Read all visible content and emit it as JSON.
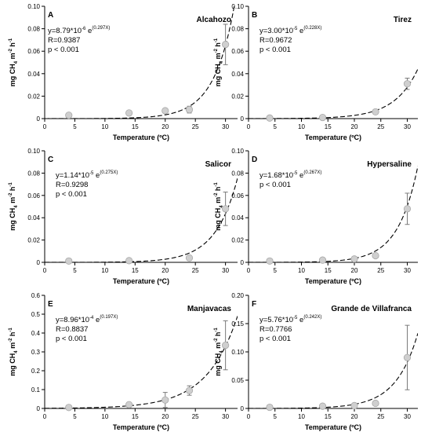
{
  "colors": {
    "axis": "#000000",
    "curve": "#000000",
    "marker_fill": "#cfcfcf",
    "marker_stroke": "#a8a8a8",
    "errorbar": "#7a7a7a"
  },
  "chart_data": [
    {
      "type": "scatter",
      "letter": "A",
      "site": "Alcahozo",
      "eq_base": "y=8.79*10",
      "eq_exp": "-6",
      "eq_e": " e",
      "eq_rate": "(0.297X)",
      "r": "R=0.9387",
      "p": "p < 0.001",
      "xlabel": "Temperature (ºC)",
      "ylabel_pre": "mg CH",
      "ylabel_sub": "4",
      "ylabel_mid": " m",
      "ylabel_sup1": "-2",
      "ylabel_h": " h",
      "ylabel_sup2": "-1",
      "xlim": [
        0,
        32
      ],
      "ylim": [
        0,
        0.1
      ],
      "xticks": [
        "0",
        "5",
        "10",
        "15",
        "20",
        "25",
        "30"
      ],
      "xtick_values": [
        0,
        5,
        10,
        15,
        20,
        25,
        30
      ],
      "yticks": [
        "0",
        "0.02",
        "0.04",
        "0.06",
        "0.08",
        "0.10"
      ],
      "ytick_values": [
        0,
        0.02,
        0.04,
        0.06,
        0.08,
        0.1
      ],
      "points": [
        {
          "x": 4,
          "y": 0.003,
          "err": 0
        },
        {
          "x": 14,
          "y": 0.005,
          "err": 0
        },
        {
          "x": 20,
          "y": 0.007,
          "err": 0
        },
        {
          "x": 24,
          "y": 0.008,
          "err": 0.003
        },
        {
          "x": 30,
          "y": 0.066,
          "err": 0.018
        }
      ],
      "fit": {
        "a": 8.79e-06,
        "b": 0.297
      }
    },
    {
      "type": "scatter",
      "letter": "B",
      "site": "Tirez",
      "eq_base": "y=3.00*10",
      "eq_exp": "-5",
      "eq_e": " e",
      "eq_rate": "(0.228X)",
      "r": "R=0.9672",
      "p": "p < 0.001",
      "xlabel": "Temperature (ºC)",
      "ylabel_pre": "mg CH",
      "ylabel_sub": "4",
      "ylabel_mid": " m",
      "ylabel_sup1": "-2",
      "ylabel_h": " h",
      "ylabel_sup2": "-1",
      "xlim": [
        0,
        32
      ],
      "ylim": [
        0,
        0.1
      ],
      "xticks": [
        "0",
        "5",
        "10",
        "15",
        "20",
        "25",
        "30"
      ],
      "xtick_values": [
        0,
        5,
        10,
        15,
        20,
        25,
        30
      ],
      "yticks": [
        "0",
        "0.02",
        "0.04",
        "0.06",
        "0.08",
        "0.10"
      ],
      "ytick_values": [
        0,
        0.02,
        0.04,
        0.06,
        0.08,
        0.1
      ],
      "points": [
        {
          "x": 4,
          "y": 0.0005,
          "err": 0
        },
        {
          "x": 14,
          "y": 0.001,
          "err": 0
        },
        {
          "x": 24,
          "y": 0.006,
          "err": 0.002
        },
        {
          "x": 30,
          "y": 0.031,
          "err": 0.005
        }
      ],
      "fit": {
        "a": 3e-05,
        "b": 0.228
      }
    },
    {
      "type": "scatter",
      "letter": "C",
      "site": "Salicor",
      "eq_base": "y=1.14*10",
      "eq_exp": "-5",
      "eq_e": " e",
      "eq_rate": "(0.275X)",
      "r": "R=0.9298",
      "p": "p < 0.001",
      "xlabel": "Temperature (ºC)",
      "ylabel_pre": "mg CH",
      "ylabel_sub": "4",
      "ylabel_mid": " m",
      "ylabel_sup1": "-2",
      "ylabel_h": " h",
      "ylabel_sup2": "-1",
      "xlim": [
        0,
        32
      ],
      "ylim": [
        0,
        0.1
      ],
      "xticks": [
        "0",
        "5",
        "10",
        "15",
        "20",
        "25",
        "30"
      ],
      "xtick_values": [
        0,
        5,
        10,
        15,
        20,
        25,
        30
      ],
      "yticks": [
        "0",
        "0.02",
        "0.04",
        "0.06",
        "0.08",
        "0.10"
      ],
      "ytick_values": [
        0,
        0.02,
        0.04,
        0.06,
        0.08,
        0.1
      ],
      "points": [
        {
          "x": 4,
          "y": 0.0012,
          "err": 0
        },
        {
          "x": 14,
          "y": 0.0015,
          "err": 0
        },
        {
          "x": 24,
          "y": 0.004,
          "err": 0
        },
        {
          "x": 30,
          "y": 0.048,
          "err": 0.015
        }
      ],
      "fit": {
        "a": 1.14e-05,
        "b": 0.275
      }
    },
    {
      "type": "scatter",
      "letter": "D",
      "site": "Hypersaline",
      "eq_base": "y=1.68*10",
      "eq_exp": "-5",
      "eq_e": " e",
      "eq_rate": "(0.267X)",
      "r": "",
      "p": "p < 0.001",
      "xlabel": "Temperature (ºC)",
      "ylabel_pre": "mg CH",
      "ylabel_sub": "4",
      "ylabel_mid": " m",
      "ylabel_sup1": "-2",
      "ylabel_h": " h",
      "ylabel_sup2": "-1",
      "xlim": [
        0,
        32
      ],
      "ylim": [
        0,
        0.1
      ],
      "xticks": [
        "0",
        "5",
        "10",
        "15",
        "20",
        "25",
        "30"
      ],
      "xtick_values": [
        0,
        5,
        10,
        15,
        20,
        25,
        30
      ],
      "yticks": [
        "0",
        "0.02",
        "0.04",
        "0.06",
        "0.08",
        "0.10"
      ],
      "ytick_values": [
        0,
        0.02,
        0.04,
        0.06,
        0.08,
        0.1
      ],
      "points": [
        {
          "x": 4,
          "y": 0.0012,
          "err": 0
        },
        {
          "x": 14,
          "y": 0.002,
          "err": 0
        },
        {
          "x": 20,
          "y": 0.003,
          "err": 0.002
        },
        {
          "x": 24,
          "y": 0.006,
          "err": 0
        },
        {
          "x": 30,
          "y": 0.048,
          "err": 0.014
        }
      ],
      "fit": {
        "a": 1.68e-05,
        "b": 0.267
      }
    },
    {
      "type": "scatter",
      "letter": "E",
      "site": "Manjavacas",
      "eq_base": "y=8.96*10",
      "eq_exp": "-4",
      "eq_e": " e",
      "eq_rate": "(0.197X)",
      "r": "R=0.8837",
      "p": "p < 0.001",
      "xlabel": "Temperature (ºC)",
      "ylabel_pre": "mg CH",
      "ylabel_sub": "4",
      "ylabel_mid": " m",
      "ylabel_sup1": "-2",
      "ylabel_h": " h",
      "ylabel_sup2": "-1",
      "xlim": [
        0,
        32
      ],
      "ylim": [
        0,
        0.6
      ],
      "xticks": [
        "0",
        "5",
        "10",
        "15",
        "20",
        "25",
        "30"
      ],
      "xtick_values": [
        0,
        5,
        10,
        15,
        20,
        25,
        30
      ],
      "yticks": [
        "0",
        "0.1",
        "0.2",
        "0.3",
        "0.4",
        "0.5",
        "0.6"
      ],
      "ytick_values": [
        0,
        0.1,
        0.2,
        0.3,
        0.4,
        0.5,
        0.6
      ],
      "points": [
        {
          "x": 4,
          "y": 0.005,
          "err": 0
        },
        {
          "x": 14,
          "y": 0.02,
          "err": 0
        },
        {
          "x": 20,
          "y": 0.045,
          "err": 0.04
        },
        {
          "x": 24,
          "y": 0.095,
          "err": 0.025
        },
        {
          "x": 30,
          "y": 0.335,
          "err": 0.13
        }
      ],
      "fit": {
        "a": 0.000896,
        "b": 0.197
      }
    },
    {
      "type": "scatter",
      "letter": "F",
      "site": "Grande de Villafranca",
      "eq_base": "y=5.76*10",
      "eq_exp": "-5",
      "eq_e": " e",
      "eq_rate": "(0.242X)",
      "r": "R=0.7766",
      "p": "p < 0.001",
      "xlabel": "Temperature (ºC)",
      "ylabel_pre": "mg CH",
      "ylabel_sub": "4",
      "ylabel_mid": " m",
      "ylabel_sup1": "-2",
      "ylabel_h": " h",
      "ylabel_sup2": "-1",
      "xlim": [
        0,
        32
      ],
      "ylim": [
        0,
        0.2
      ],
      "xticks": [
        "0",
        "5",
        "10",
        "15",
        "20",
        "25",
        "30"
      ],
      "xtick_values": [
        0,
        5,
        10,
        15,
        20,
        25,
        30
      ],
      "yticks": [
        "0",
        "0.05",
        "0.10",
        "0.15",
        "0.20"
      ],
      "ytick_values": [
        0,
        0.05,
        0.1,
        0.15,
        0.2
      ],
      "points": [
        {
          "x": 4,
          "y": 0.002,
          "err": 0
        },
        {
          "x": 14,
          "y": 0.004,
          "err": 0
        },
        {
          "x": 20,
          "y": 0.005,
          "err": 0
        },
        {
          "x": 24,
          "y": 0.009,
          "err": 0
        },
        {
          "x": 30,
          "y": 0.09,
          "err": 0.057
        }
      ],
      "fit": {
        "a": 5.76e-05,
        "b": 0.242
      }
    }
  ]
}
